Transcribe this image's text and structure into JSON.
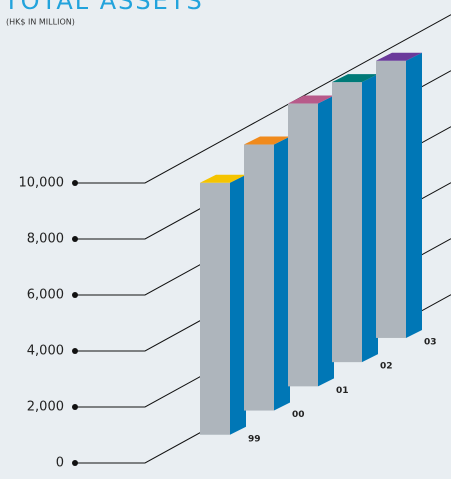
{
  "chart_data": {
    "type": "bar3d",
    "title": "TOTAL ASSETS",
    "subtitle": "(HK$ IN MILLION)",
    "categories": [
      "99",
      "00",
      "01",
      "02",
      "03"
    ],
    "values": [
      9000,
      9500,
      10100,
      10000,
      9900
    ],
    "colors": [
      "#f5c400",
      "#f08a1c",
      "#b85a8a",
      "#007a78",
      "#6b3a9b"
    ],
    "front_color": "#aeb5bc",
    "side_color": "#0077b6",
    "ylim": [
      0,
      10000
    ],
    "yticks": [
      0,
      {
        "value": 2000,
        "label": "2,000"
      },
      {
        "value": 4000,
        "label": "4,000"
      },
      {
        "value": 6000,
        "label": "6,000"
      },
      {
        "value": 8000,
        "label": "8,000"
      },
      {
        "value": 10000,
        "label": "10,000"
      }
    ]
  }
}
